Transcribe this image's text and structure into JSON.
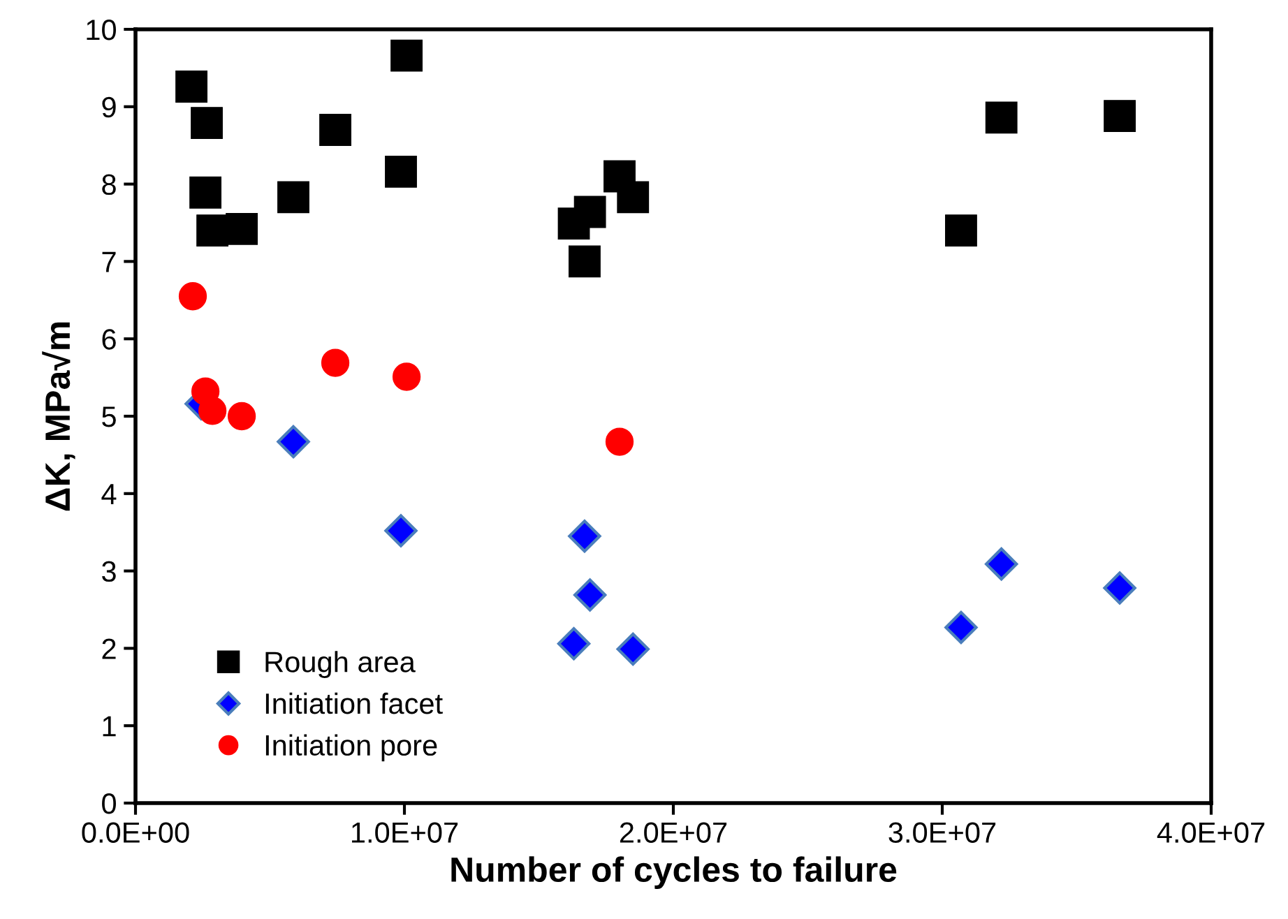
{
  "chart_data": {
    "type": "scatter",
    "xlabel": "Number of cycles to failure",
    "ylabel": "ΔK, MPa√m",
    "xlim": [
      0,
      40000000
    ],
    "ylim": [
      0,
      10
    ],
    "xticks": [
      {
        "value": 0,
        "label": "0.0E+00"
      },
      {
        "value": 10000000,
        "label": "1.0E+07"
      },
      {
        "value": 20000000,
        "label": "2.0E+07"
      },
      {
        "value": 30000000,
        "label": "3.0E+07"
      },
      {
        "value": 40000000,
        "label": "4.0E+07"
      }
    ],
    "yticks": [
      0,
      1,
      2,
      3,
      4,
      5,
      6,
      7,
      8,
      9,
      10
    ],
    "grid": false,
    "legend": "bottom left",
    "series": [
      {
        "name": "Rough area",
        "color": "#000000",
        "marker": "square",
        "x": [
          2080000,
          2650000,
          2600000,
          2860000,
          3950000,
          5870000,
          7430000,
          9870000,
          10080000,
          16300000,
          16900000,
          16700000,
          18000000,
          18500000,
          30700000,
          32200000,
          36600000
        ],
        "values": [
          9.26,
          8.79,
          7.89,
          7.4,
          7.42,
          7.83,
          8.7,
          8.16,
          9.66,
          7.49,
          7.64,
          7.0,
          8.1,
          7.83,
          7.4,
          8.86,
          8.88
        ]
      },
      {
        "name": "Initiation facet",
        "color": "#0000ff",
        "marker": "diamond",
        "x": [
          2440000,
          5870000,
          9870000,
          16700000,
          16900000,
          16300000,
          18500000,
          30700000,
          32200000,
          36600000
        ],
        "values": [
          5.16,
          4.67,
          3.52,
          3.45,
          2.69,
          2.06,
          1.99,
          2.27,
          3.09,
          2.78
        ]
      },
      {
        "name": "Initiation pore",
        "color": "#ff0000",
        "marker": "circle",
        "x": [
          2130000,
          2600000,
          2860000,
          3950000,
          7430000,
          10080000,
          18000000
        ],
        "values": [
          6.55,
          5.32,
          5.07,
          5.0,
          5.69,
          5.51,
          4.67
        ]
      }
    ]
  }
}
